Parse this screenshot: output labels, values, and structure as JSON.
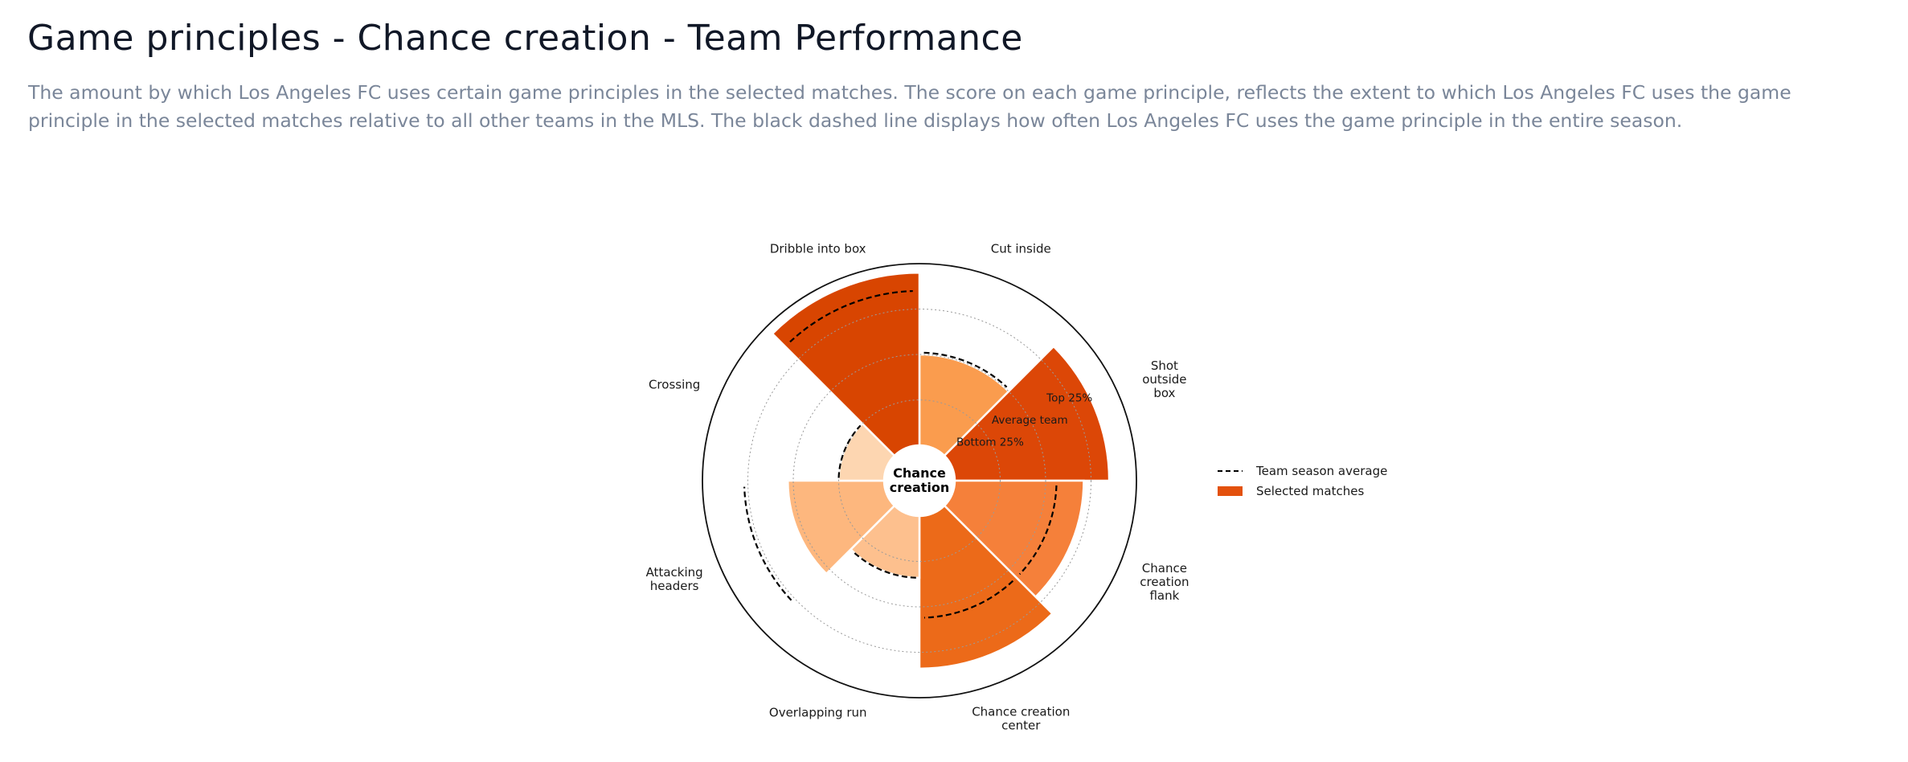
{
  "header": {
    "title": "Game principles - Chance creation - Team Performance",
    "description": "The amount by which Los Angeles FC uses certain game principles in the selected matches. The score on each game principle, reflects the extent to which Los Angeles FC uses the game principle in the selected matches relative to all other teams in the MLS. The black dashed line displays how often Los Angeles FC uses the game principle in the entire season."
  },
  "chart_data": {
    "type": "polar-bar",
    "center_label": [
      "Chance",
      "creation"
    ],
    "scale_max": 1.0,
    "reference_rings": [
      {
        "label": "Bottom 25%",
        "value": 0.25
      },
      {
        "label": "Average team",
        "value": 0.5
      },
      {
        "label": "Top 25%",
        "value": 0.75
      }
    ],
    "categories": [
      {
        "label": [
          "Cut inside"
        ],
        "value": 0.5,
        "season_average": 0.51,
        "color": "#fa9c4e"
      },
      {
        "label": [
          "Shot",
          "outside",
          "box"
        ],
        "value": 0.85,
        "season_average": null,
        "color": "#dc4707"
      },
      {
        "label": [
          "Chance",
          "creation",
          "flank"
        ],
        "value": 0.71,
        "season_average": 0.56,
        "color": "#f5803a"
      },
      {
        "label": [
          "Chance creation",
          "center"
        ],
        "value": 0.84,
        "season_average": 0.56,
        "color": "#ec6a19"
      },
      {
        "label": [
          "Overlapping run"
        ],
        "value": 0.34,
        "season_average": 0.34,
        "color": "#fdc08e"
      },
      {
        "label": [
          "Attacking",
          "headers"
        ],
        "value": 0.53,
        "season_average": 0.77,
        "color": "#fdb77e"
      },
      {
        "label": [
          "Crossing"
        ],
        "value": 0.25,
        "season_average": 0.25,
        "color": "#fdd6b1"
      },
      {
        "label": [
          "Dribble into box"
        ],
        "value": 0.95,
        "season_average": 0.85,
        "color": "#d84501"
      }
    ],
    "legend": [
      {
        "label": "Team season average",
        "style": "dashed-line",
        "color": "#000000"
      },
      {
        "label": "Selected matches",
        "style": "filled-box",
        "color": "#e3510d"
      }
    ],
    "legend_position": "right"
  }
}
